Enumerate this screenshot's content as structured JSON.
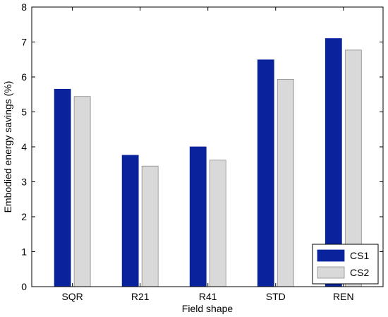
{
  "chart_data": {
    "type": "bar",
    "xlabel": "Field shape",
    "ylabel": "Embodied energy savings (%)",
    "categories": [
      "SQR",
      "R21",
      "R41",
      "STD",
      "REN"
    ],
    "ylim": [
      0,
      8
    ],
    "yticks": [
      "0",
      "1",
      "2",
      "3",
      "4",
      "5",
      "6",
      "7",
      "8"
    ],
    "series": [
      {
        "name": "CS1",
        "color": "#08239c",
        "values": [
          5.65,
          3.76,
          4.0,
          6.49,
          7.1
        ]
      },
      {
        "name": "CS2",
        "color": "#d9d9d9",
        "values": [
          5.44,
          3.45,
          3.62,
          5.93,
          6.77
        ]
      }
    ],
    "grid": false,
    "legend": {
      "placement": "bottom-right"
    }
  }
}
